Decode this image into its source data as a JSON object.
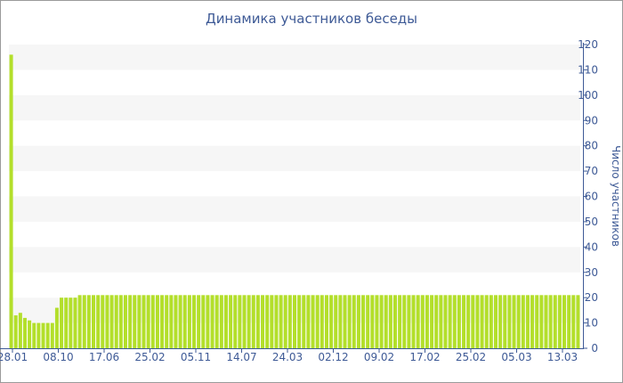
{
  "chart_data": {
    "type": "bar",
    "title": "Динамика участников беседы",
    "ylabel": "Число участников",
    "ylim": [
      0,
      120
    ],
    "y_ticks": [
      0,
      10,
      20,
      30,
      40,
      50,
      60,
      70,
      80,
      90,
      100,
      110,
      120
    ],
    "y_axis_side": "right",
    "grid": "alternating horizontal bands",
    "bar_color": "#b3df2b",
    "band_color": "#f6f6f6",
    "axis_color": "#3e5a96",
    "x_tick_labels": [
      "28.01",
      "08.10",
      "17.06",
      "25.02",
      "05.11",
      "14.07",
      "24.03",
      "02.12",
      "09.02",
      "17.02",
      "25.02",
      "05.03",
      "13.03"
    ],
    "values": [
      116,
      13,
      14,
      12,
      11,
      10,
      10,
      10,
      10,
      10,
      16,
      20,
      20,
      20,
      20,
      21,
      21,
      21,
      21,
      21,
      21,
      21,
      21,
      21,
      21,
      21,
      21,
      21,
      21,
      21,
      21,
      21,
      21,
      21,
      21,
      21,
      21,
      21,
      21,
      21,
      21,
      21,
      21,
      21,
      21,
      21,
      21,
      21,
      21,
      21,
      21,
      21,
      21,
      21,
      21,
      21,
      21,
      21,
      21,
      21,
      21,
      21,
      21,
      21,
      21,
      21,
      21,
      21,
      21,
      21,
      21,
      21,
      21,
      21,
      21,
      21,
      21,
      21,
      21,
      21,
      21,
      21,
      21,
      21,
      21,
      21,
      21,
      21,
      21,
      21,
      21,
      21,
      21,
      21,
      21,
      21,
      21,
      21,
      21,
      21,
      21,
      21,
      21,
      21,
      21,
      21,
      21,
      21,
      21,
      21,
      21,
      21,
      21,
      21,
      21,
      21,
      21,
      21,
      21,
      21,
      21,
      21,
      21,
      21,
      21
    ]
  }
}
